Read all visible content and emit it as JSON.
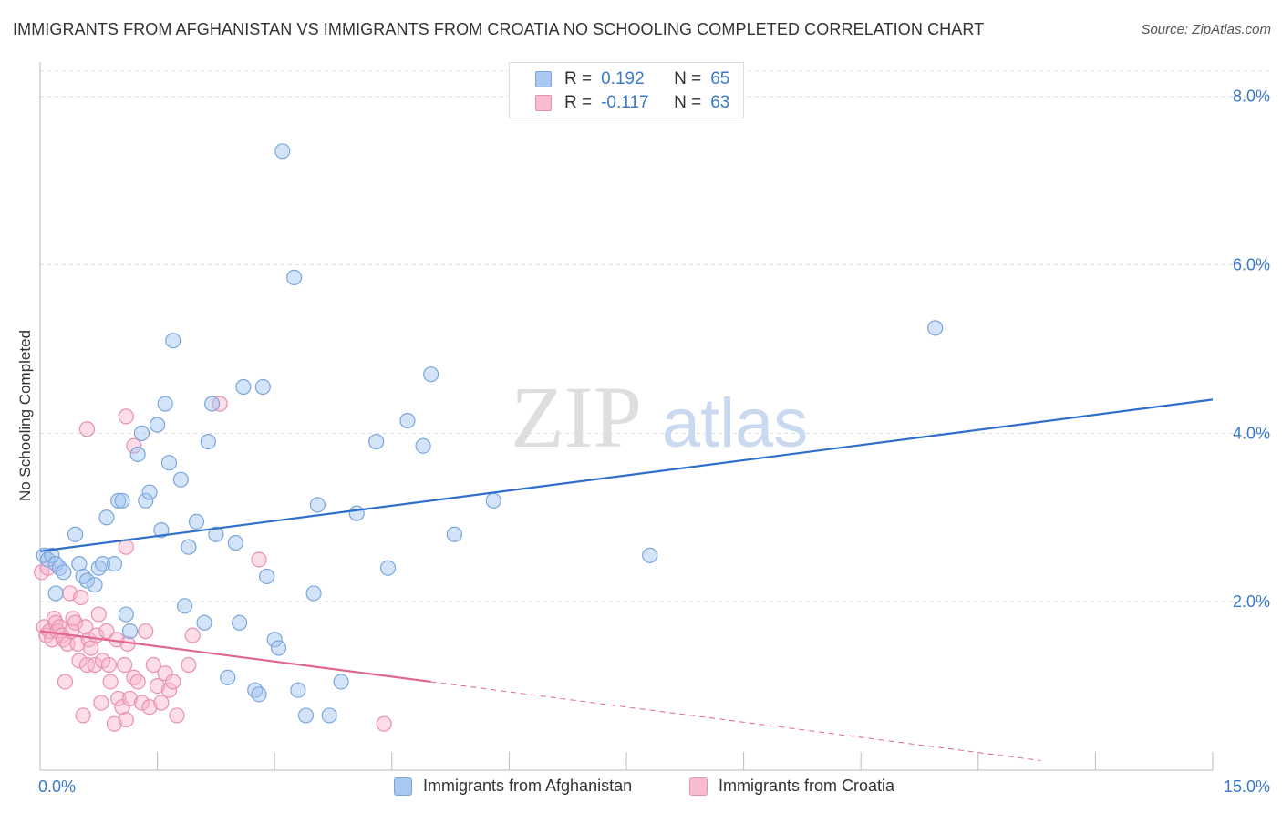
{
  "title": "IMMIGRANTS FROM AFGHANISTAN VS IMMIGRANTS FROM CROATIA NO SCHOOLING COMPLETED CORRELATION CHART",
  "source": "Source: ZipAtlas.com",
  "watermark": {
    "zip": "ZIP",
    "atlas": "atlas"
  },
  "legend": {
    "rows": [
      {
        "r_label": "R =",
        "r_value": "0.192",
        "n_label": "N =",
        "n_value": "65",
        "color": "#a8c8f0",
        "border": "#7aa6dc"
      },
      {
        "r_label": "R =",
        "r_value": "-0.117",
        "n_label": "N =",
        "n_value": "63",
        "color": "#f8bcd0",
        "border": "#e890b0"
      }
    ]
  },
  "bottom_legend": [
    {
      "label": "Immigrants from Afghanistan",
      "color": "#a8c8f0",
      "border": "#7aa6dc"
    },
    {
      "label": "Immigrants from Croatia",
      "color": "#f8bcd0",
      "border": "#e890b0"
    }
  ],
  "colors": {
    "blue_fill": "rgba(160,196,240,0.45)",
    "blue_stroke": "#7aa6dc",
    "blue_line": "#2e6fcc",
    "pink_fill": "rgba(248,180,204,0.45)",
    "pink_stroke": "#e890b0",
    "pink_line": "#e06690",
    "grid": "#dddddd",
    "tick_label": "#3a78c9"
  },
  "chart_data": {
    "type": "scatter",
    "title": "IMMIGRANTS FROM AFGHANISTAN VS IMMIGRANTS FROM CROATIA NO SCHOOLING COMPLETED CORRELATION CHART",
    "xlabel": "",
    "ylabel": "No Schooling Completed",
    "xlim": [
      0,
      15
    ],
    "ylim": [
      0,
      8.3
    ],
    "x_tick_labels": [
      "0.0%",
      "15.0%"
    ],
    "y_ticks": [
      2,
      4,
      6,
      8
    ],
    "y_tick_labels": [
      "2.0%",
      "4.0%",
      "6.0%",
      "8.0%"
    ],
    "grid": true,
    "series": [
      {
        "name": "Immigrants from Afghanistan",
        "r": 0.192,
        "n": 65,
        "trend": {
          "x": [
            0,
            15
          ],
          "y": [
            2.6,
            4.4
          ]
        },
        "points": [
          [
            0.05,
            2.55
          ],
          [
            0.1,
            2.5
          ],
          [
            0.15,
            2.55
          ],
          [
            0.2,
            2.45
          ],
          [
            0.25,
            2.4
          ],
          [
            0.3,
            2.35
          ],
          [
            0.2,
            2.1
          ],
          [
            0.45,
            2.8
          ],
          [
            0.5,
            2.45
          ],
          [
            0.55,
            2.3
          ],
          [
            0.6,
            2.25
          ],
          [
            0.7,
            2.2
          ],
          [
            0.75,
            2.4
          ],
          [
            0.8,
            2.45
          ],
          [
            0.85,
            3.0
          ],
          [
            0.95,
            2.45
          ],
          [
            1.0,
            3.2
          ],
          [
            1.05,
            3.2
          ],
          [
            1.1,
            1.85
          ],
          [
            1.15,
            1.65
          ],
          [
            1.25,
            3.75
          ],
          [
            1.3,
            4.0
          ],
          [
            1.35,
            3.2
          ],
          [
            1.4,
            3.3
          ],
          [
            1.5,
            4.1
          ],
          [
            1.55,
            2.85
          ],
          [
            1.6,
            4.35
          ],
          [
            1.65,
            3.65
          ],
          [
            1.7,
            5.1
          ],
          [
            1.8,
            3.45
          ],
          [
            1.85,
            1.95
          ],
          [
            1.9,
            2.65
          ],
          [
            2.0,
            2.95
          ],
          [
            2.1,
            1.75
          ],
          [
            2.15,
            3.9
          ],
          [
            2.2,
            4.35
          ],
          [
            2.25,
            2.8
          ],
          [
            2.4,
            1.1
          ],
          [
            2.5,
            2.7
          ],
          [
            2.55,
            1.75
          ],
          [
            2.6,
            4.55
          ],
          [
            2.75,
            0.95
          ],
          [
            2.8,
            0.9
          ],
          [
            2.85,
            4.55
          ],
          [
            2.9,
            2.3
          ],
          [
            3.0,
            1.55
          ],
          [
            3.05,
            1.45
          ],
          [
            3.1,
            7.35
          ],
          [
            3.3,
            0.95
          ],
          [
            3.4,
            0.65
          ],
          [
            3.25,
            5.85
          ],
          [
            3.5,
            2.1
          ],
          [
            3.55,
            3.15
          ],
          [
            3.7,
            0.65
          ],
          [
            3.85,
            1.05
          ],
          [
            4.05,
            3.05
          ],
          [
            4.3,
            3.9
          ],
          [
            4.45,
            2.4
          ],
          [
            4.7,
            4.15
          ],
          [
            4.9,
            3.85
          ],
          [
            5.0,
            4.7
          ],
          [
            5.3,
            2.8
          ],
          [
            5.8,
            3.2
          ],
          [
            7.8,
            2.55
          ],
          [
            11.45,
            5.25
          ]
        ]
      },
      {
        "name": "Immigrants from Croatia",
        "r": -0.117,
        "n": 63,
        "trend": {
          "x": [
            0,
            5.0
          ],
          "y": [
            1.65,
            1.05
          ]
        },
        "trend_dashed": {
          "x": [
            5.0,
            15
          ],
          "y": [
            1.05,
            -0.15
          ]
        },
        "points": [
          [
            0.02,
            2.35
          ],
          [
            0.05,
            1.7
          ],
          [
            0.08,
            1.6
          ],
          [
            0.1,
            2.4
          ],
          [
            0.12,
            1.65
          ],
          [
            0.15,
            1.55
          ],
          [
            0.18,
            1.8
          ],
          [
            0.2,
            1.75
          ],
          [
            0.22,
            1.65
          ],
          [
            0.25,
            1.7
          ],
          [
            0.28,
            1.6
          ],
          [
            0.3,
            1.55
          ],
          [
            0.32,
            1.05
          ],
          [
            0.35,
            1.5
          ],
          [
            0.38,
            2.1
          ],
          [
            0.4,
            1.65
          ],
          [
            0.42,
            1.8
          ],
          [
            0.45,
            1.75
          ],
          [
            0.48,
            1.5
          ],
          [
            0.5,
            1.3
          ],
          [
            0.52,
            2.05
          ],
          [
            0.55,
            0.65
          ],
          [
            0.58,
            1.7
          ],
          [
            0.6,
            1.25
          ],
          [
            0.62,
            1.55
          ],
          [
            0.65,
            1.45
          ],
          [
            0.7,
            1.25
          ],
          [
            0.72,
            1.6
          ],
          [
            0.75,
            1.85
          ],
          [
            0.78,
            0.8
          ],
          [
            0.8,
            1.3
          ],
          [
            0.85,
            1.65
          ],
          [
            0.88,
            1.25
          ],
          [
            0.9,
            1.05
          ],
          [
            0.95,
            0.55
          ],
          [
            0.98,
            1.55
          ],
          [
            1.0,
            0.85
          ],
          [
            1.05,
            0.75
          ],
          [
            1.08,
            1.25
          ],
          [
            1.1,
            0.6
          ],
          [
            1.12,
            1.5
          ],
          [
            1.15,
            0.85
          ],
          [
            1.2,
            1.1
          ],
          [
            1.25,
            1.05
          ],
          [
            1.3,
            0.8
          ],
          [
            1.35,
            1.65
          ],
          [
            1.4,
            0.75
          ],
          [
            1.45,
            1.25
          ],
          [
            1.5,
            1.0
          ],
          [
            1.55,
            0.8
          ],
          [
            1.6,
            1.15
          ],
          [
            1.65,
            0.95
          ],
          [
            1.7,
            1.05
          ],
          [
            1.75,
            0.65
          ],
          [
            1.9,
            1.25
          ],
          [
            1.95,
            1.6
          ],
          [
            0.6,
            4.05
          ],
          [
            1.1,
            4.2
          ],
          [
            1.2,
            3.85
          ],
          [
            2.3,
            4.35
          ],
          [
            1.1,
            2.65
          ],
          [
            2.8,
            2.5
          ],
          [
            4.4,
            0.55
          ]
        ]
      }
    ]
  }
}
